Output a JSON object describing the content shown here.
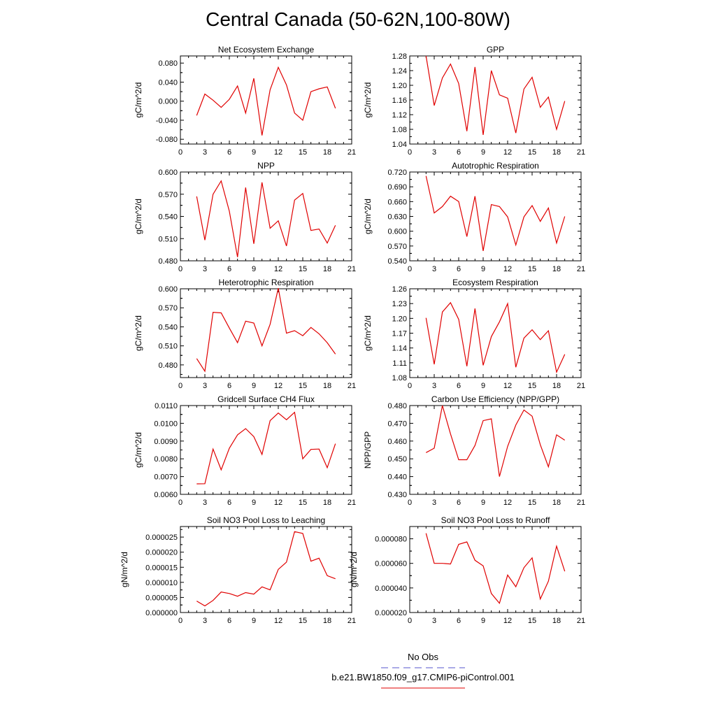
{
  "title": "Central Canada (50-62N,100-80W)",
  "legend": {
    "entries": [
      {
        "label": "No Obs",
        "color": "#5555cc",
        "style": "dashed"
      },
      {
        "label": "b.e21.BW1850.f09_g17.CMIP6-piControl.001",
        "color": "#e00000",
        "style": "solid"
      }
    ]
  },
  "colors": {
    "series": "#e00000",
    "legend_obs": "#5555cc"
  },
  "chart_data": [
    {
      "type": "line",
      "title": "Net Ecosystem Exchange",
      "ylabel": "gC/m^2/d",
      "xlim": [
        0,
        21
      ],
      "xticks": [
        0,
        3,
        6,
        9,
        12,
        15,
        18,
        21
      ],
      "ylim": [
        -0.09,
        0.095
      ],
      "yticks": [
        -0.08,
        -0.04,
        0.0,
        0.04,
        0.08
      ],
      "yticklabels": [
        "-0.080",
        "-0.040",
        "0.000",
        "0.040",
        "0.080"
      ],
      "x": [
        2,
        3,
        4,
        5,
        6,
        7,
        8,
        9,
        10,
        11,
        12,
        13,
        14,
        15,
        16,
        17,
        18,
        19
      ],
      "series": [
        {
          "name": "b.e21.BW1850.f09_g17.CMIP6-piControl.001",
          "values": [
            -0.03,
            0.015,
            0.002,
            -0.013,
            0.004,
            0.032,
            -0.025,
            0.048,
            -0.072,
            0.024,
            0.071,
            0.034,
            -0.025,
            -0.04,
            0.02,
            0.026,
            0.03,
            -0.015
          ]
        }
      ]
    },
    {
      "type": "line",
      "title": "GPP",
      "ylabel": "gC/m^2/d",
      "xlim": [
        0,
        21
      ],
      "xticks": [
        0,
        3,
        6,
        9,
        12,
        15,
        18,
        21
      ],
      "ylim": [
        1.04,
        1.28
      ],
      "yticks": [
        1.04,
        1.08,
        1.12,
        1.16,
        1.2,
        1.24,
        1.28
      ],
      "yticklabels": [
        "1.04",
        "1.08",
        "1.12",
        "1.16",
        "1.20",
        "1.24",
        "1.28"
      ],
      "x": [
        2,
        3,
        4,
        5,
        6,
        7,
        8,
        9,
        10,
        11,
        12,
        13,
        14,
        15,
        16,
        17,
        18,
        19
      ],
      "series": [
        {
          "name": "b.e21.BW1850.f09_g17.CMIP6-piControl.001",
          "values": [
            1.28,
            1.145,
            1.22,
            1.258,
            1.205,
            1.075,
            1.25,
            1.065,
            1.24,
            1.174,
            1.165,
            1.07,
            1.19,
            1.222,
            1.14,
            1.168,
            1.08,
            1.157
          ]
        }
      ]
    },
    {
      "type": "line",
      "title": "NPP",
      "ylabel": "gC/m^2/d",
      "xlim": [
        0,
        21
      ],
      "xticks": [
        0,
        3,
        6,
        9,
        12,
        15,
        18,
        21
      ],
      "ylim": [
        0.48,
        0.6
      ],
      "yticks": [
        0.48,
        0.51,
        0.54,
        0.57,
        0.6
      ],
      "yticklabels": [
        "0.480",
        "0.510",
        "0.540",
        "0.570",
        "0.600"
      ],
      "x": [
        2,
        3,
        4,
        5,
        6,
        7,
        8,
        9,
        10,
        11,
        12,
        13,
        14,
        15,
        16,
        17,
        18,
        19
      ],
      "series": [
        {
          "name": "b.e21.BW1850.f09_g17.CMIP6-piControl.001",
          "values": [
            0.567,
            0.508,
            0.57,
            0.588,
            0.547,
            0.485,
            0.579,
            0.503,
            0.586,
            0.524,
            0.534,
            0.5,
            0.562,
            0.571,
            0.521,
            0.523,
            0.504,
            0.528
          ]
        }
      ]
    },
    {
      "type": "line",
      "title": "Autotrophic Respiration",
      "ylabel": "gC/m^2/d",
      "xlim": [
        0,
        21
      ],
      "xticks": [
        0,
        3,
        6,
        9,
        12,
        15,
        18,
        21
      ],
      "ylim": [
        0.54,
        0.72
      ],
      "yticks": [
        0.54,
        0.57,
        0.6,
        0.63,
        0.66,
        0.69,
        0.72
      ],
      "yticklabels": [
        "0.540",
        "0.570",
        "0.600",
        "0.630",
        "0.660",
        "0.690",
        "0.720"
      ],
      "x": [
        2,
        3,
        4,
        5,
        6,
        7,
        8,
        9,
        10,
        11,
        12,
        13,
        14,
        15,
        16,
        17,
        18,
        19
      ],
      "series": [
        {
          "name": "b.e21.BW1850.f09_g17.CMIP6-piControl.001",
          "values": [
            0.712,
            0.637,
            0.65,
            0.671,
            0.66,
            0.589,
            0.671,
            0.56,
            0.654,
            0.65,
            0.629,
            0.572,
            0.629,
            0.652,
            0.62,
            0.647,
            0.576,
            0.63
          ]
        }
      ]
    },
    {
      "type": "line",
      "title": "Heterotrophic Respiration",
      "ylabel": "gC/m^2/d",
      "xlim": [
        0,
        21
      ],
      "xticks": [
        0,
        3,
        6,
        9,
        12,
        15,
        18,
        21
      ],
      "ylim": [
        0.46,
        0.6
      ],
      "yticks": [
        0.48,
        0.51,
        0.54,
        0.57,
        0.6
      ],
      "yticklabels": [
        "0.480",
        "0.510",
        "0.540",
        "0.570",
        "0.600"
      ],
      "x": [
        2,
        3,
        4,
        5,
        6,
        7,
        8,
        9,
        10,
        11,
        12,
        13,
        14,
        15,
        16,
        17,
        18,
        19
      ],
      "series": [
        {
          "name": "b.e21.BW1850.f09_g17.CMIP6-piControl.001",
          "values": [
            0.49,
            0.47,
            0.563,
            0.562,
            0.538,
            0.515,
            0.549,
            0.546,
            0.51,
            0.544,
            0.601,
            0.53,
            0.534,
            0.526,
            0.539,
            0.529,
            0.515,
            0.497
          ]
        }
      ]
    },
    {
      "type": "line",
      "title": "Ecosystem Respiration",
      "ylabel": "gC/m^2/d",
      "xlim": [
        0,
        21
      ],
      "xticks": [
        0,
        3,
        6,
        9,
        12,
        15,
        18,
        21
      ],
      "ylim": [
        1.08,
        1.26
      ],
      "yticks": [
        1.08,
        1.11,
        1.14,
        1.17,
        1.2,
        1.23,
        1.26
      ],
      "yticklabels": [
        "1.08",
        "1.11",
        "1.14",
        "1.17",
        "1.20",
        "1.23",
        "1.26"
      ],
      "x": [
        2,
        3,
        4,
        5,
        6,
        7,
        8,
        9,
        10,
        11,
        12,
        13,
        14,
        15,
        16,
        17,
        18,
        19
      ],
      "series": [
        {
          "name": "b.e21.BW1850.f09_g17.CMIP6-piControl.001",
          "values": [
            1.201,
            1.107,
            1.213,
            1.232,
            1.198,
            1.103,
            1.22,
            1.105,
            1.163,
            1.193,
            1.23,
            1.101,
            1.16,
            1.177,
            1.157,
            1.175,
            1.091,
            1.127
          ]
        }
      ]
    },
    {
      "type": "line",
      "title": "Gridcell Surface CH4 Flux",
      "ylabel": "gC/m^2/d",
      "xlim": [
        0,
        21
      ],
      "xticks": [
        0,
        3,
        6,
        9,
        12,
        15,
        18,
        21
      ],
      "ylim": [
        0.006,
        0.011
      ],
      "yticks": [
        0.006,
        0.007,
        0.008,
        0.009,
        0.01,
        0.011
      ],
      "yticklabels": [
        "0.0060",
        "0.0070",
        "0.0080",
        "0.0090",
        "0.0100",
        "0.0110"
      ],
      "x": [
        2,
        3,
        4,
        5,
        6,
        7,
        8,
        9,
        10,
        11,
        12,
        13,
        14,
        15,
        16,
        17,
        18,
        19
      ],
      "series": [
        {
          "name": "b.e21.BW1850.f09_g17.CMIP6-piControl.001",
          "values": [
            0.00659,
            0.0066,
            0.00855,
            0.00738,
            0.0086,
            0.00935,
            0.0097,
            0.00925,
            0.00825,
            0.01015,
            0.01058,
            0.0102,
            0.01062,
            0.008,
            0.00853,
            0.00855,
            0.0075,
            0.00885
          ]
        }
      ]
    },
    {
      "type": "line",
      "title": "Carbon Use Efficiency (NPP/GPP)",
      "ylabel": "NPP/GPP",
      "xlim": [
        0,
        21
      ],
      "xticks": [
        0,
        3,
        6,
        9,
        12,
        15,
        18,
        21
      ],
      "ylim": [
        0.43,
        0.48
      ],
      "yticks": [
        0.43,
        0.44,
        0.45,
        0.46,
        0.47,
        0.48
      ],
      "yticklabels": [
        "0.430",
        "0.440",
        "0.450",
        "0.460",
        "0.470",
        "0.480"
      ],
      "x": [
        2,
        3,
        4,
        5,
        6,
        7,
        8,
        9,
        10,
        11,
        12,
        13,
        14,
        15,
        16,
        17,
        18,
        19
      ],
      "series": [
        {
          "name": "b.e21.BW1850.f09_g17.CMIP6-piControl.001",
          "values": [
            0.4535,
            0.456,
            0.48,
            0.464,
            0.4495,
            0.4495,
            0.4575,
            0.4715,
            0.4725,
            0.44,
            0.457,
            0.469,
            0.4775,
            0.474,
            0.458,
            0.4455,
            0.4635,
            0.4605
          ]
        }
      ]
    },
    {
      "type": "line",
      "title": "Soil NO3 Pool Loss to Leaching",
      "ylabel": "gN/m^2/d",
      "xlim": [
        0,
        21
      ],
      "xticks": [
        0,
        3,
        6,
        9,
        12,
        15,
        18,
        21
      ],
      "ylim": [
        0.0,
        2.85e-05
      ],
      "yticks": [
        0.0,
        5e-06,
        1e-05,
        1.5e-05,
        2e-05,
        2.5e-05
      ],
      "yticklabels": [
        "0.000000",
        "0.000005",
        "0.000010",
        "0.000015",
        "0.000020",
        "0.000025"
      ],
      "x": [
        2,
        3,
        4,
        5,
        6,
        7,
        8,
        9,
        10,
        11,
        12,
        13,
        14,
        15,
        16,
        17,
        18,
        19
      ],
      "series": [
        {
          "name": "b.e21.BW1850.f09_g17.CMIP6-piControl.001",
          "values": [
            3.8e-06,
            2.2e-06,
            4e-06,
            6.8e-06,
            6.3e-06,
            5.4e-06,
            6.6e-06,
            6.1e-06,
            8.5e-06,
            7.5e-06,
            1.43e-05,
            1.67e-05,
            2.68e-05,
            2.62e-05,
            1.7e-05,
            1.8e-05,
            1.22e-05,
            1.12e-05
          ]
        }
      ]
    },
    {
      "type": "line",
      "title": "Soil NO3 Pool Loss to Runoff",
      "ylabel": "gN/m^2/d",
      "xlim": [
        0,
        21
      ],
      "xticks": [
        0,
        3,
        6,
        9,
        12,
        15,
        18,
        21
      ],
      "ylim": [
        2e-05,
        9e-05
      ],
      "yticks": [
        2e-05,
        4e-05,
        6e-05,
        8e-05
      ],
      "yticklabels": [
        "0.000020",
        "0.000040",
        "0.000060",
        "0.000080"
      ],
      "x": [
        2,
        3,
        4,
        5,
        6,
        7,
        8,
        9,
        10,
        11,
        12,
        13,
        14,
        15,
        16,
        17,
        18,
        19
      ],
      "series": [
        {
          "name": "b.e21.BW1850.f09_g17.CMIP6-piControl.001",
          "values": [
            8.45e-05,
            6e-05,
            6e-05,
            5.95e-05,
            7.55e-05,
            7.75e-05,
            6.25e-05,
            5.8e-05,
            3.55e-05,
            2.75e-05,
            5.05e-05,
            4.1e-05,
            5.65e-05,
            6.45e-05,
            3.1e-05,
            4.55e-05,
            7.4e-05,
            5.35e-05
          ]
        }
      ]
    }
  ]
}
